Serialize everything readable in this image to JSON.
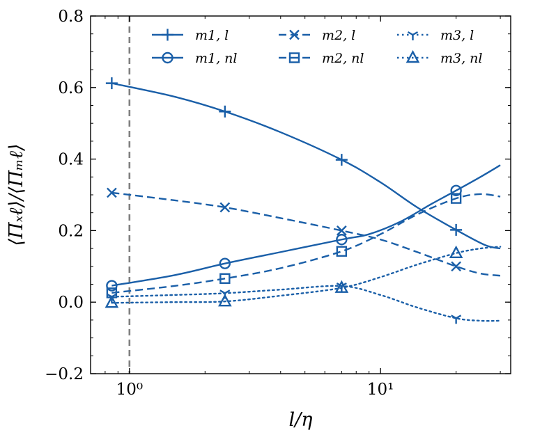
{
  "chart_data": {
    "type": "line",
    "xscale": "log",
    "xlabel": "l/η",
    "ylabel": "⟨Πₓℓ⟩/⟨Πₘℓ⟩",
    "xlim": [
      0.7,
      33
    ],
    "ylim": [
      -0.2,
      0.8
    ],
    "xticks": [
      {
        "value": 1,
        "label": "10⁰"
      },
      {
        "value": 10,
        "label": "10¹"
      }
    ],
    "yticks": [
      {
        "value": -0.2,
        "label": "−0.2"
      },
      {
        "value": 0.0,
        "label": "0.0"
      },
      {
        "value": 0.2,
        "label": "0.2"
      },
      {
        "value": 0.4,
        "label": "0.4"
      },
      {
        "value": 0.6,
        "label": "0.6"
      },
      {
        "value": 0.8,
        "label": "0.8"
      }
    ],
    "vline": {
      "x": 1.0,
      "style": "dashed",
      "color": "#808080"
    },
    "color": "#1a5fa8",
    "series": [
      {
        "name": "m1, l",
        "label_main": "m1",
        "label_sub": "l",
        "marker": "plus",
        "linestyle": "solid",
        "markers": {
          "x": [
            0.85,
            2.4,
            7.0,
            20.0
          ],
          "y": [
            0.612,
            0.533,
            0.398,
            0.202
          ]
        },
        "curve": {
          "x": [
            0.85,
            1.5,
            2.4,
            4.0,
            7.0,
            10.0,
            14.0,
            20.0,
            26.0,
            30.0
          ],
          "y": [
            0.612,
            0.575,
            0.533,
            0.475,
            0.398,
            0.335,
            0.265,
            0.202,
            0.16,
            0.15
          ]
        }
      },
      {
        "name": "m1, nl",
        "label_main": "m1",
        "label_sub": "nl",
        "marker": "circle",
        "linestyle": "solid",
        "markers": {
          "x": [
            0.85,
            2.4,
            7.0,
            20.0
          ],
          "y": [
            0.046,
            0.108,
            0.175,
            0.312
          ]
        },
        "curve": {
          "x": [
            0.85,
            1.5,
            2.4,
            4.0,
            7.0,
            9.0,
            12.0,
            16.0,
            20.0,
            25.0,
            30.0
          ],
          "y": [
            0.046,
            0.075,
            0.108,
            0.14,
            0.175,
            0.19,
            0.225,
            0.275,
            0.312,
            0.35,
            0.383
          ]
        }
      },
      {
        "name": "m2, l",
        "label_main": "m2",
        "label_sub": "l",
        "marker": "x",
        "linestyle": "dashed",
        "markers": {
          "x": [
            0.85,
            2.4,
            7.0,
            20.0
          ],
          "y": [
            0.306,
            0.265,
            0.2,
            0.1
          ]
        },
        "curve": {
          "x": [
            0.85,
            1.5,
            2.4,
            4.0,
            7.0,
            10.0,
            14.0,
            20.0,
            25.0,
            30.0
          ],
          "y": [
            0.306,
            0.285,
            0.265,
            0.235,
            0.2,
            0.175,
            0.14,
            0.1,
            0.08,
            0.074
          ]
        }
      },
      {
        "name": "m2, nl",
        "label_main": "m2",
        "label_sub": "nl",
        "marker": "square",
        "linestyle": "dashed",
        "markers": {
          "x": [
            0.85,
            2.4,
            7.0,
            20.0
          ],
          "y": [
            0.026,
            0.066,
            0.142,
            0.29
          ]
        },
        "curve": {
          "x": [
            0.85,
            1.5,
            2.4,
            4.0,
            7.0,
            10.0,
            14.0,
            20.0,
            25.0,
            30.0
          ],
          "y": [
            0.026,
            0.045,
            0.066,
            0.095,
            0.142,
            0.19,
            0.245,
            0.29,
            0.302,
            0.295
          ]
        }
      },
      {
        "name": "m3, l",
        "label_main": "m3",
        "label_sub": "l",
        "marker": "tri-down",
        "linestyle": "dotted",
        "markers": {
          "x": [
            0.85,
            2.4,
            7.0,
            20.0
          ],
          "y": [
            0.015,
            0.025,
            0.045,
            -0.045
          ]
        },
        "curve": {
          "x": [
            0.85,
            1.5,
            2.4,
            4.0,
            7.0,
            10.0,
            14.0,
            20.0,
            25.0,
            30.0
          ],
          "y": [
            0.015,
            0.02,
            0.025,
            0.035,
            0.045,
            0.02,
            -0.015,
            -0.045,
            -0.052,
            -0.052
          ]
        }
      },
      {
        "name": "m3, nl",
        "label_main": "m3",
        "label_sub": "nl",
        "marker": "triangle",
        "linestyle": "dotted",
        "markers": {
          "x": [
            0.85,
            2.4,
            7.0,
            20.0
          ],
          "y": [
            -0.002,
            0.002,
            0.04,
            0.137
          ]
        },
        "curve": {
          "x": [
            0.85,
            1.5,
            2.4,
            4.0,
            7.0,
            10.0,
            14.0,
            20.0,
            25.0,
            30.0
          ],
          "y": [
            -0.002,
            0.0,
            0.002,
            0.018,
            0.04,
            0.07,
            0.105,
            0.137,
            0.15,
            0.155
          ]
        }
      }
    ]
  }
}
